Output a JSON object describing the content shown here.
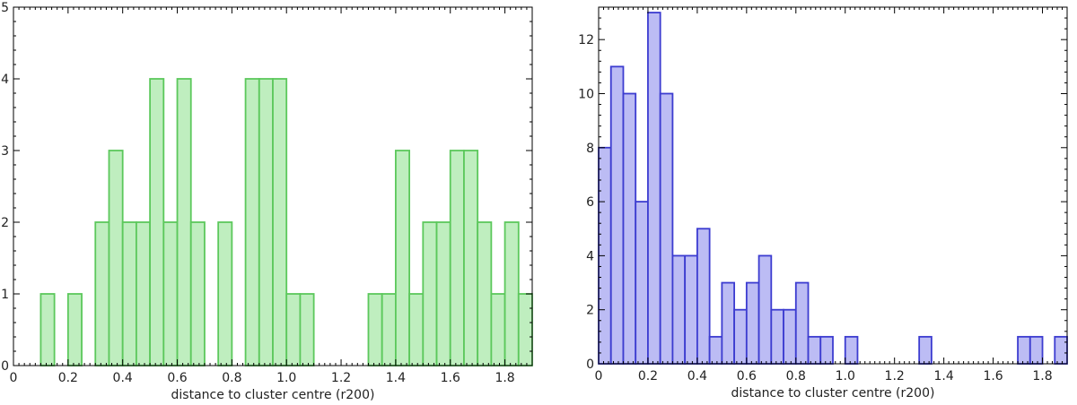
{
  "chart_data": [
    {
      "type": "bar",
      "xlabel": "distance to cluster centre (r200)",
      "ylabel": "",
      "xlim": [
        0,
        1.9
      ],
      "ylim": [
        0,
        5
      ],
      "bin_width": 0.05,
      "bin_edges_start": [
        0.1,
        0.2,
        0.3,
        0.35,
        0.4,
        0.45,
        0.5,
        0.55,
        0.6,
        0.65,
        0.75,
        0.85,
        0.9,
        0.95,
        1.0,
        1.05,
        1.3,
        1.35,
        1.4,
        1.45,
        1.5,
        1.55,
        1.6,
        1.65,
        1.7,
        1.75,
        1.8,
        1.85
      ],
      "values": [
        1,
        1,
        2,
        3,
        2,
        2,
        4,
        2,
        4,
        2,
        2,
        4,
        4,
        4,
        1,
        1,
        1,
        1,
        3,
        1,
        2,
        2,
        3,
        3,
        2,
        1,
        2,
        1
      ],
      "xticks": [
        "0",
        "0.2",
        "0.4",
        "0.6",
        "0.8",
        "1.0",
        "1.2",
        "1.4",
        "1.6",
        "1.8"
      ],
      "yticks": [
        "0",
        "1",
        "2",
        "3",
        "4",
        "5"
      ],
      "bar_color": "#bfeebf",
      "edge_color": "#5cc85c"
    },
    {
      "type": "bar",
      "xlabel": "distance to cluster centre (r200)",
      "ylabel": "",
      "xlim": [
        0,
        1.9
      ],
      "ylim": [
        0,
        13.2
      ],
      "bin_width": 0.05,
      "bin_edges_start": [
        0.0,
        0.05,
        0.1,
        0.15,
        0.2,
        0.25,
        0.3,
        0.35,
        0.4,
        0.45,
        0.5,
        0.55,
        0.6,
        0.65,
        0.7,
        0.75,
        0.8,
        0.85,
        0.9,
        1.0,
        1.3,
        1.7,
        1.75,
        1.85
      ],
      "values": [
        8,
        11,
        10,
        6,
        13,
        10,
        4,
        4,
        5,
        1,
        3,
        2,
        3,
        4,
        2,
        2,
        3,
        1,
        1,
        1,
        1,
        1,
        1,
        1
      ],
      "xticks": [
        "0",
        "0.2",
        "0.4",
        "0.6",
        "0.8",
        "1.0",
        "1.2",
        "1.4",
        "1.6",
        "1.8"
      ],
      "yticks": [
        "0",
        "2",
        "4",
        "6",
        "8",
        "10",
        "12"
      ],
      "bar_color": "#bcbcf4",
      "edge_color": "#3c3cd0"
    }
  ]
}
